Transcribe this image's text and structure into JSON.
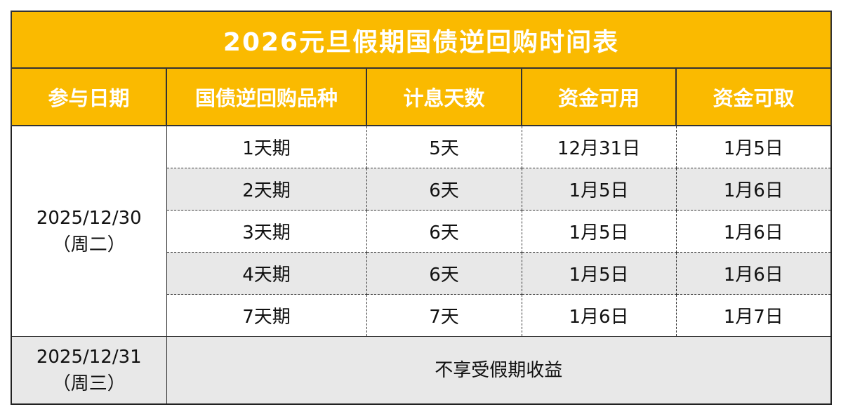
{
  "title": "2026元旦假期国债逆回购时间表",
  "headers": [
    "参与日期",
    "国债逆回购品种",
    "计息天数",
    "资金可用",
    "资金可取"
  ],
  "groups": [
    {
      "date": "2025/12/30",
      "weekday": "（周二）",
      "rows": [
        [
          "1天期",
          "5天",
          "12月31日",
          "1月5日"
        ],
        [
          "2天期",
          "6天",
          "1月5日",
          "1月6日"
        ],
        [
          "3天期",
          "6天",
          "1月5日",
          "1月6日"
        ],
        [
          "4天期",
          "6天",
          "1月5日",
          "1月6日"
        ],
        [
          "7天期",
          "7天",
          "1月6日",
          "1月7日"
        ]
      ]
    },
    {
      "date": "2025/12/31",
      "weekday": "（周三）",
      "note": "不享受假期收益"
    }
  ]
}
